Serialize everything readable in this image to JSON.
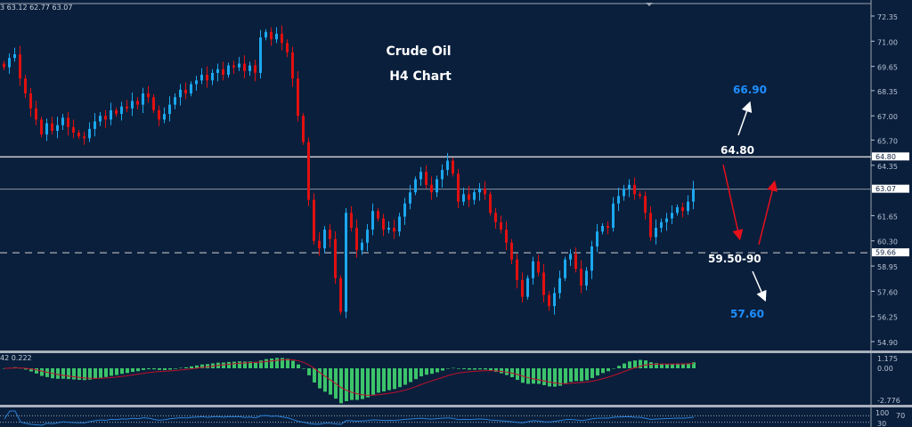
{
  "colors": {
    "background": "#0a1f3c",
    "bull": "#1ca8ef",
    "bear": "#e01010",
    "grid_line": "#c8c8c8",
    "annotation_blue": "#1e8fff",
    "annotation_white": "#ffffff",
    "arrow_red": "#e8101a",
    "macd_hist": "#3cc46a",
    "macd_signal": "#c0102a",
    "rsi_line": "#2a7fd4"
  },
  "header": {
    "ohlc_readout": "3 63.12 62.77 63.07"
  },
  "chart_data": {
    "type": "candlestick",
    "title": "Crude Oil",
    "subtitle": "H4 Chart",
    "ylim": [
      54.5,
      72.7
    ],
    "y_ticks": [
      "72.35",
      "71.00",
      "69.65",
      "68.35",
      "67.00",
      "65.70",
      "64.35",
      "61.65",
      "60.30",
      "58.95",
      "57.60",
      "56.25",
      "54.90"
    ],
    "closes": [
      69.6,
      70.1,
      70.3,
      69.0,
      68.2,
      67.4,
      66.8,
      66.0,
      66.6,
      66.2,
      66.5,
      66.9,
      66.4,
      66.1,
      65.9,
      65.8,
      66.3,
      66.7,
      67.0,
      66.8,
      67.3,
      67.1,
      67.5,
      67.4,
      67.8,
      67.6,
      68.2,
      68.0,
      67.3,
      66.8,
      67.1,
      67.6,
      68.0,
      68.4,
      68.2,
      68.7,
      68.9,
      69.2,
      68.9,
      69.3,
      69.5,
      69.2,
      69.7,
      69.6,
      69.8,
      69.4,
      69.7,
      69.3,
      71.2,
      71.5,
      71.1,
      71.4,
      70.9,
      70.4,
      69.0,
      67.0,
      65.6,
      62.5,
      60.3,
      59.9,
      60.9,
      60.4,
      58.3,
      56.5,
      61.8,
      61.0,
      59.8,
      60.2,
      60.9,
      61.9,
      61.5,
      60.9,
      61.0,
      60.8,
      61.6,
      62.3,
      62.9,
      63.6,
      64.0,
      63.3,
      62.9,
      63.6,
      64.1,
      64.6,
      63.9,
      62.4,
      62.8,
      62.5,
      62.9,
      63.1,
      62.8,
      61.8,
      61.3,
      60.9,
      60.2,
      59.3,
      58.2,
      57.3,
      58.3,
      59.2,
      58.6,
      57.4,
      56.8,
      57.5,
      58.3,
      59.3,
      59.6,
      58.8,
      57.9,
      58.7,
      60.0,
      60.8,
      61.1,
      61.0,
      62.3,
      62.7,
      63.1,
      63.3,
      62.8,
      62.7,
      61.8,
      60.5,
      61.0,
      61.3,
      61.5,
      61.8,
      62.1,
      61.9,
      62.4,
      63.07
    ],
    "levels": [
      {
        "price": 64.8,
        "label": "64.80",
        "style": "solid"
      },
      {
        "price": 63.07,
        "label": "63.07",
        "style": "thin"
      },
      {
        "price": 59.66,
        "label": "59.66",
        "style": "dashed"
      }
    ],
    "annotations": [
      {
        "text": "66.90",
        "color": "blue"
      },
      {
        "text": "64.80",
        "color": "white"
      },
      {
        "text": "59.50-90",
        "color": "white"
      },
      {
        "text": "57.60",
        "color": "blue"
      }
    ],
    "macd": {
      "readout": "42 0.222",
      "y_ticks": [
        "1.175",
        "0.00",
        "-2.776"
      ],
      "ylim": [
        -2.9,
        1.4
      ]
    },
    "rsi": {
      "y_ticks": [
        "100",
        "70",
        "30"
      ],
      "levels": [
        70,
        30
      ]
    }
  }
}
